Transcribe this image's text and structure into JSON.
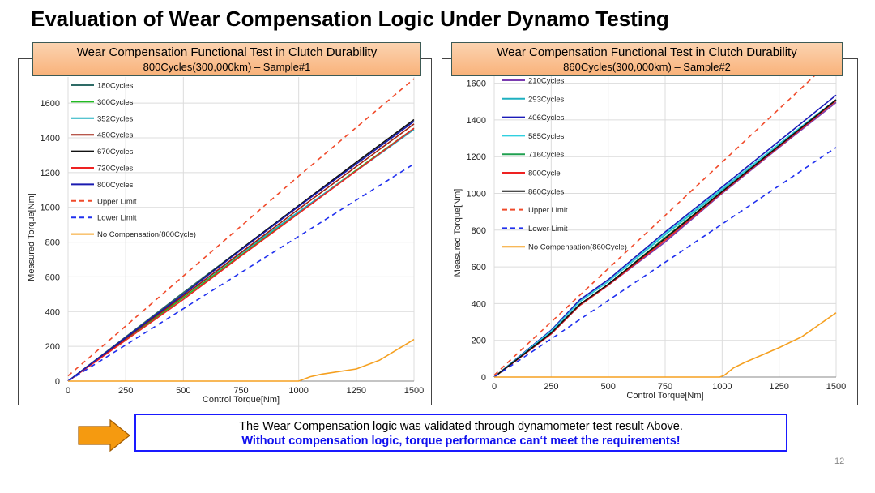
{
  "slide": {
    "title": "Evaluation of Wear Compensation Logic Under Dynamo Testing",
    "page_number": "12",
    "note_line1": "The Wear Compensation logic was validated through dynamometer test result Above.",
    "note_line2": "Without compensation logic, torque performance can‘t meet the requirements!"
  },
  "chart_data": [
    {
      "type": "line",
      "title": "Wear Compensation Functional Test in Clutch Durability",
      "subtitle": "800Cycles(300,000km) – Sample#1",
      "xlabel": "Control Torque[Nm]",
      "ylabel": "Measured Torque[Nm]",
      "xlim": [
        0,
        1500
      ],
      "ylim": [
        0,
        1750
      ],
      "xticks": [
        0,
        250,
        500,
        750,
        1000,
        1250,
        1500
      ],
      "yticks": [
        0,
        200,
        400,
        600,
        800,
        1000,
        1200,
        1400,
        1600
      ],
      "grid": true,
      "legend": "top-left",
      "x": [
        0,
        250,
        500,
        750,
        1000,
        1250,
        1500
      ],
      "series": [
        {
          "name": "180Cycles",
          "color": "#2e6b66",
          "values": [
            0,
            255,
            510,
            760,
            1010,
            1250,
            1495
          ]
        },
        {
          "name": "300Cycles",
          "color": "#22bb22",
          "values": [
            0,
            240,
            480,
            725,
            970,
            1215,
            1455
          ]
        },
        {
          "name": "352Cycles",
          "color": "#1fb0c0",
          "values": [
            0,
            245,
            490,
            735,
            975,
            1210,
            1448
          ]
        },
        {
          "name": "480Cycles",
          "color": "#a02010",
          "values": [
            0,
            245,
            490,
            740,
            990,
            1235,
            1480
          ]
        },
        {
          "name": "670Cycles",
          "color": "#111111",
          "values": [
            0,
            250,
            500,
            760,
            1010,
            1260,
            1505
          ]
        },
        {
          "name": "730Cycles",
          "color": "#ee2222",
          "values": [
            0,
            235,
            470,
            720,
            965,
            1210,
            1455
          ]
        },
        {
          "name": "800Cycles",
          "color": "#1a1ab0",
          "values": [
            0,
            250,
            500,
            755,
            1005,
            1250,
            1495
          ]
        },
        {
          "name": "Upper Limit",
          "color": "#f04a2a",
          "dashed": true,
          "values": [
            30,
            317,
            605,
            892,
            1180,
            1460,
            1740
          ]
        },
        {
          "name": "Lower Limit",
          "color": "#2030ee",
          "dashed": true,
          "values": [
            0,
            208,
            417,
            625,
            833,
            1042,
            1250
          ]
        },
        {
          "name": "No Compensation(800Cycle)",
          "color": "#f5a020",
          "x": [
            0,
            990,
            1000,
            1050,
            1100,
            1250,
            1350,
            1500
          ],
          "values": [
            0,
            0,
            0,
            25,
            40,
            70,
            120,
            240
          ]
        }
      ]
    },
    {
      "type": "line",
      "title": "Wear Compensation Functional Test in Clutch Durability",
      "subtitle": "860Cycles(300,000km) – Sample#2",
      "xlabel": "Control Torque[Nm]",
      "ylabel": "Measured Torque[Nm]",
      "xlim": [
        0,
        1500
      ],
      "ylim": [
        0,
        1660
      ],
      "xticks": [
        0,
        250,
        500,
        750,
        1000,
        1250,
        1500
      ],
      "yticks": [
        0,
        200,
        400,
        600,
        800,
        1000,
        1200,
        1400,
        1600
      ],
      "grid": true,
      "legend": "top-left",
      "x": [
        0,
        250,
        375,
        500,
        750,
        1000,
        1250,
        1500
      ],
      "series": [
        {
          "name": "210Cycles",
          "color": "#7a3cb0",
          "values": [
            0,
            235,
            390,
            500,
            735,
            1000,
            1250,
            1495
          ]
        },
        {
          "name": "293Cycles",
          "color": "#1fb0c0",
          "values": [
            0,
            250,
            410,
            520,
            775,
            1020,
            1270,
            1510
          ]
        },
        {
          "name": "406Cycles",
          "color": "#1a1ab8",
          "values": [
            0,
            255,
            420,
            530,
            790,
            1035,
            1285,
            1535
          ]
        },
        {
          "name": "585Cycles",
          "color": "#30d0e0",
          "values": [
            0,
            250,
            410,
            520,
            780,
            1025,
            1270,
            1510
          ]
        },
        {
          "name": "716Cycles",
          "color": "#20a050",
          "values": [
            0,
            240,
            395,
            505,
            760,
            1010,
            1260,
            1505
          ]
        },
        {
          "name": "800Cycle",
          "color": "#ee2222",
          "values": [
            0,
            235,
            390,
            500,
            745,
            1005,
            1255,
            1505
          ]
        },
        {
          "name": "860Cycles",
          "color": "#111111",
          "values": [
            0,
            240,
            395,
            505,
            755,
            1010,
            1260,
            1510
          ]
        },
        {
          "name": "Upper Limit",
          "color": "#f04a2a",
          "dashed": true,
          "values": [
            10,
            300,
            445,
            590,
            880,
            1170,
            1460,
            1750
          ]
        },
        {
          "name": "Lower Limit",
          "color": "#2030ee",
          "dashed": true,
          "values": [
            0,
            208,
            313,
            417,
            625,
            833,
            1042,
            1250
          ]
        },
        {
          "name": "No Compensation(860Cycle)",
          "color": "#f5a020",
          "x": [
            0,
            990,
            1010,
            1050,
            1100,
            1250,
            1350,
            1500
          ],
          "values": [
            0,
            0,
            10,
            50,
            80,
            160,
            220,
            350
          ]
        }
      ]
    }
  ]
}
